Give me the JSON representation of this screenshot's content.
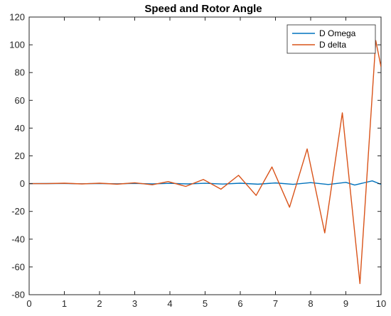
{
  "chart_data": {
    "type": "line",
    "title": "Speed  and Rotor Angle",
    "xlabel": "",
    "ylabel": "",
    "xlim": [
      0,
      10
    ],
    "ylim": [
      -80,
      120
    ],
    "xticks": [
      0,
      1,
      2,
      3,
      4,
      5,
      6,
      7,
      8,
      9,
      10
    ],
    "yticks": [
      -80,
      -60,
      -40,
      -20,
      0,
      20,
      40,
      60,
      80,
      100,
      120
    ],
    "grid": false,
    "legend_position": "top-right",
    "series": [
      {
        "name": "D Omega",
        "color": "#0072BD",
        "points": [
          [
            0,
            0
          ],
          [
            0.5,
            0.05
          ],
          [
            1,
            0.1
          ],
          [
            1.5,
            -0.1
          ],
          [
            2,
            0.1
          ],
          [
            2.5,
            -0.1
          ],
          [
            3,
            0.15
          ],
          [
            3.5,
            -0.15
          ],
          [
            4,
            0.2
          ],
          [
            4.5,
            -0.2
          ],
          [
            5,
            0.25
          ],
          [
            5.5,
            -0.3
          ],
          [
            6,
            0.3
          ],
          [
            6.5,
            -0.4
          ],
          [
            7,
            0.5
          ],
          [
            7.5,
            -0.5
          ],
          [
            8,
            0.7
          ],
          [
            8.5,
            -0.6
          ],
          [
            9,
            0.9
          ],
          [
            9.25,
            -1.0
          ],
          [
            9.5,
            0.5
          ],
          [
            9.75,
            2.0
          ],
          [
            10,
            -0.5
          ]
        ]
      },
      {
        "name": "D delta",
        "color": "#D95319",
        "points": [
          [
            0,
            0
          ],
          [
            0.5,
            0
          ],
          [
            1,
            0.3
          ],
          [
            1.5,
            -0.2
          ],
          [
            2,
            0.3
          ],
          [
            2.5,
            -0.4
          ],
          [
            3,
            0.6
          ],
          [
            3.5,
            -0.8
          ],
          [
            3.95,
            1.5
          ],
          [
            4.45,
            -2.0
          ],
          [
            4.95,
            3.0
          ],
          [
            5.45,
            -4.0
          ],
          [
            5.95,
            6.0
          ],
          [
            6.45,
            -8.5
          ],
          [
            6.9,
            12.0
          ],
          [
            7.4,
            -17.0
          ],
          [
            7.9,
            25.0
          ],
          [
            8.4,
            -35.5
          ],
          [
            8.9,
            51.0
          ],
          [
            9.4,
            -72.0
          ],
          [
            9.85,
            103.0
          ],
          [
            10,
            84.0
          ]
        ]
      }
    ]
  }
}
